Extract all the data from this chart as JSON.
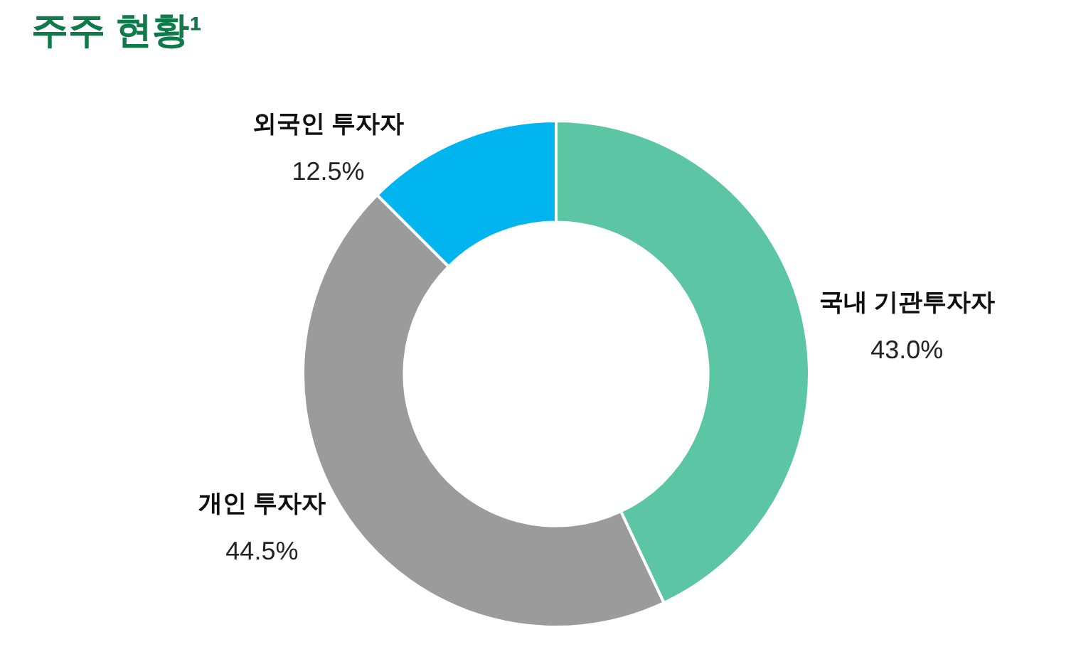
{
  "chart_data": {
    "type": "donut",
    "title": "주주 현황¹",
    "categories": [
      "국내 기관투자자",
      "개인 투자자",
      "외국인 투자자"
    ],
    "values": [
      43.0,
      44.5,
      12.5
    ],
    "colors": [
      "#5cc6a4",
      "#9b9b9b",
      "#00b4f0"
    ],
    "value_labels": [
      "43.0%",
      "44.5%",
      "12.5%"
    ]
  }
}
